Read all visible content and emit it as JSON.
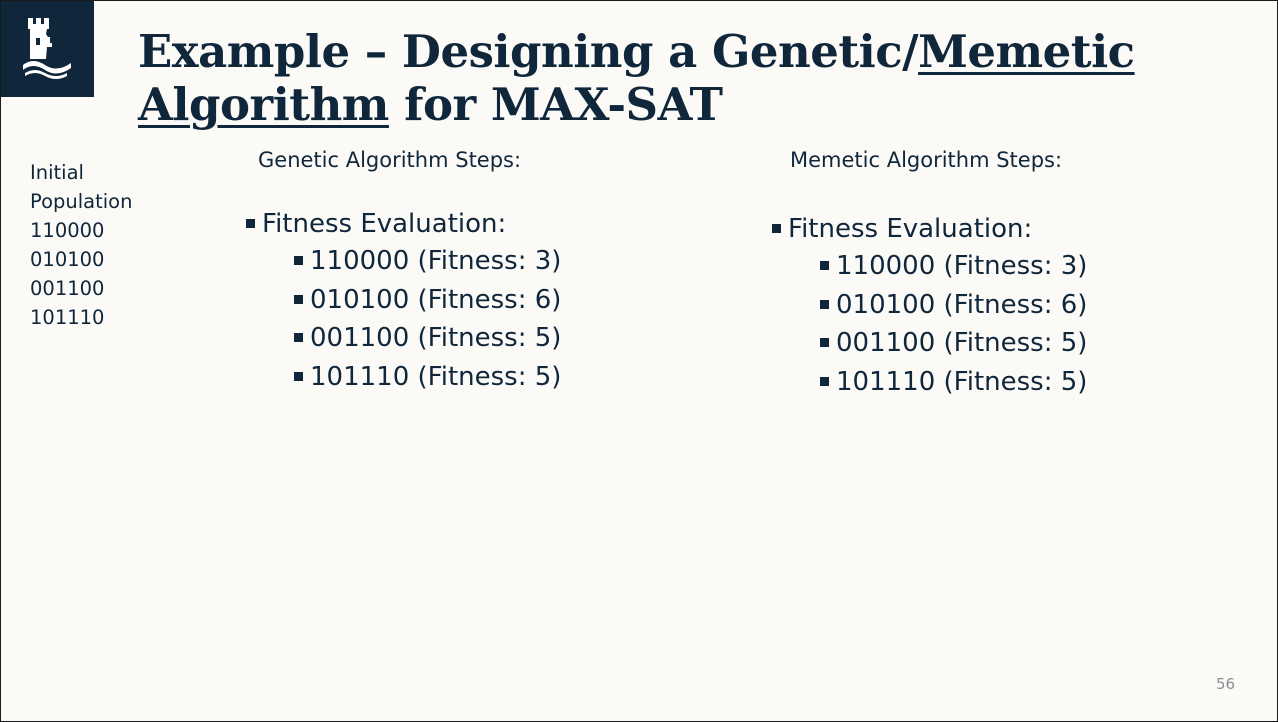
{
  "slide": {
    "title_part1": "Example – Designing a Genetic/",
    "title_memetic": "Memetic",
    "title_algorithm": "Algorithm",
    "title_part2": " for MAX-SAT",
    "page_number": "56"
  },
  "initial_population": {
    "label_line1": "Initial",
    "label_line2": "Population",
    "items": [
      "110000",
      "010100",
      "001100",
      "101110"
    ]
  },
  "genetic": {
    "heading": "Genetic Algorithm Steps:",
    "step_label": "Fitness Evaluation:",
    "items": [
      "110000 (Fitness: 3)",
      "010100 (Fitness: 6)",
      "001100 (Fitness: 5)",
      "101110 (Fitness: 5)"
    ]
  },
  "memetic": {
    "heading": "Memetic Algorithm Steps:",
    "step_label": "Fitness Evaluation:",
    "items": [
      "110000 (Fitness: 3)",
      "010100 (Fitness: 6)",
      "001100 (Fitness: 5)",
      "101110 (Fitness: 5)"
    ]
  },
  "logo": {
    "icon": "castle-tower-icon"
  },
  "colors": {
    "navy": "#10263b",
    "background": "#fbfaf7",
    "page_number": "#8a8f96"
  }
}
